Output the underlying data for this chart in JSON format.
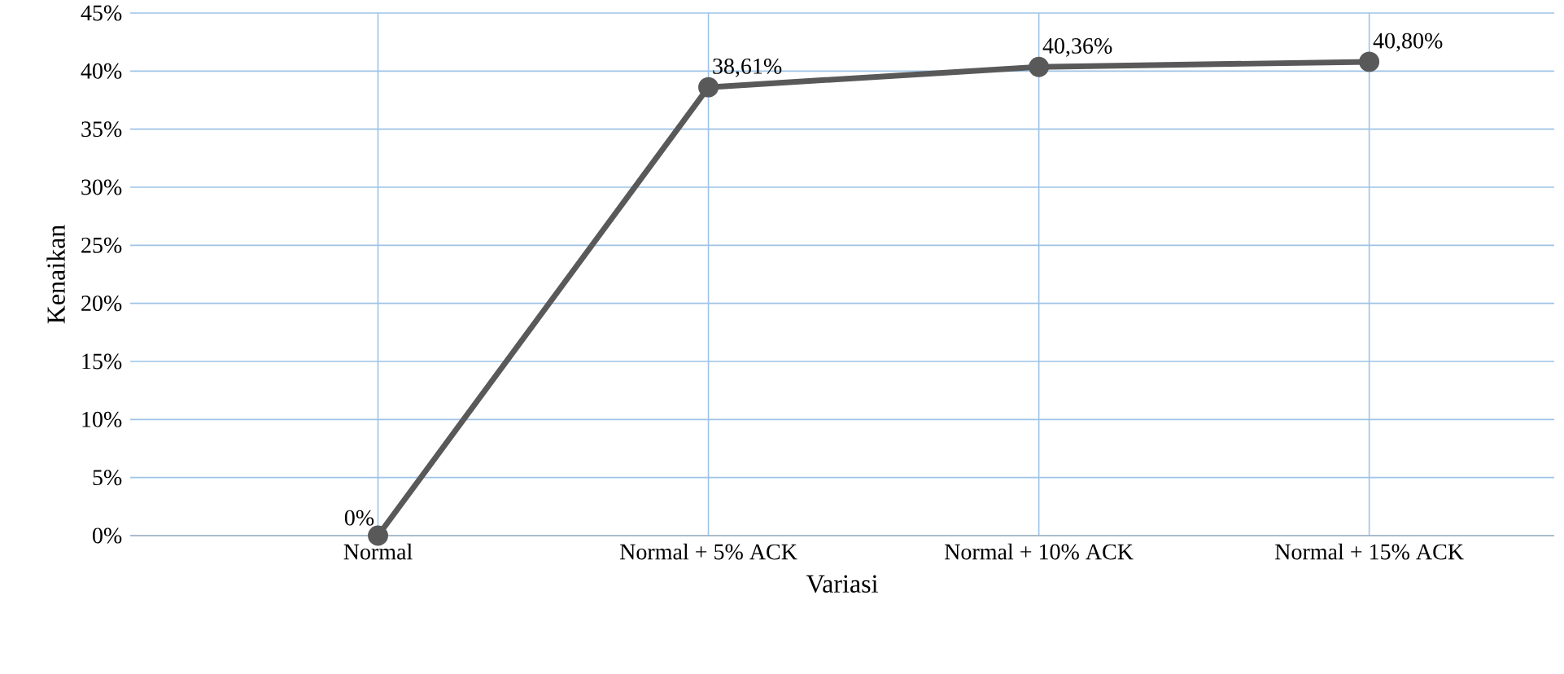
{
  "chart_data": {
    "type": "line",
    "xlabel": "Variasi",
    "ylabel": "Kenaikan",
    "categories": [
      "Normal",
      "Normal + 5%  ACK",
      "Normal + 10%  ACK",
      "Normal + 15%  ACK"
    ],
    "series": [
      {
        "color": "#595959",
        "values": [
          0,
          38.61,
          40.36,
          40.8
        ],
        "value_labels": [
          "0%",
          "38,61%",
          "40,36%",
          "40,80%"
        ]
      }
    ],
    "ylim": [
      0,
      45
    ],
    "yticks": [
      {
        "value": 0,
        "label": "0%"
      },
      {
        "value": 5,
        "label": "5%"
      },
      {
        "value": 10,
        "label": "10%"
      },
      {
        "value": 15,
        "label": "15%"
      },
      {
        "value": 20,
        "label": "20%"
      },
      {
        "value": 25,
        "label": "25%"
      },
      {
        "value": 30,
        "label": "30%"
      },
      {
        "value": 35,
        "label": "35%"
      },
      {
        "value": 40,
        "label": "40%"
      },
      {
        "value": 45,
        "label": "45%"
      }
    ],
    "grid": true,
    "marker": "circle",
    "line_style": "solid"
  }
}
